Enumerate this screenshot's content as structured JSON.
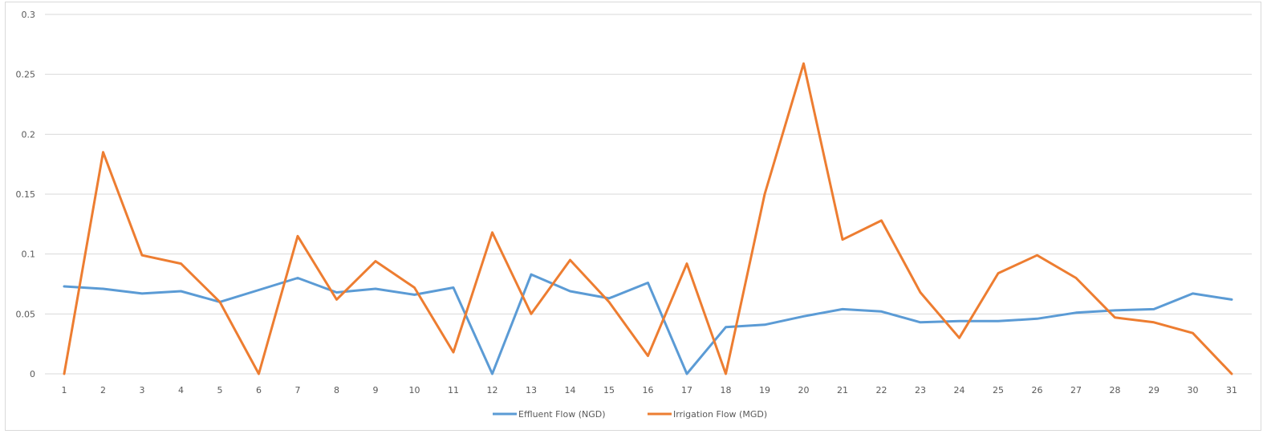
{
  "chart_data": {
    "type": "line",
    "title": "",
    "xlabel": "",
    "ylabel": "",
    "categories": [
      "1",
      "2",
      "3",
      "4",
      "5",
      "6",
      "7",
      "8",
      "9",
      "10",
      "11",
      "12",
      "13",
      "14",
      "15",
      "16",
      "17",
      "18",
      "19",
      "20",
      "21",
      "22",
      "23",
      "24",
      "25",
      "26",
      "27",
      "28",
      "29",
      "30",
      "31"
    ],
    "yticks": [
      "0",
      "0.05",
      "0.1",
      "0.15",
      "0.2",
      "0.25",
      "0.3"
    ],
    "ylim": [
      0,
      0.3
    ],
    "grid": true,
    "legend_position": "bottom",
    "series": [
      {
        "name": "Effluent Flow (NGD)",
        "color": "#5b9bd5",
        "values": [
          0.073,
          0.071,
          0.067,
          0.069,
          0.06,
          0.07,
          0.08,
          0.068,
          0.071,
          0.066,
          0.072,
          0.0,
          0.083,
          0.069,
          0.063,
          0.076,
          0.0,
          0.039,
          0.041,
          0.048,
          0.054,
          0.052,
          0.043,
          0.044,
          0.044,
          0.046,
          0.051,
          0.053,
          0.054,
          0.067,
          0.062
        ]
      },
      {
        "name": "Irrigation Flow (MGD)",
        "color": "#ed7d31",
        "values": [
          0.0,
          0.185,
          0.099,
          0.092,
          0.06,
          0.0,
          0.115,
          0.062,
          0.094,
          0.072,
          0.018,
          0.118,
          0.05,
          0.095,
          0.06,
          0.015,
          0.092,
          0.0,
          0.15,
          0.259,
          0.112,
          0.128,
          0.068,
          0.03,
          0.084,
          0.099,
          0.08,
          0.047,
          0.043,
          0.034,
          0.0
        ]
      }
    ]
  }
}
